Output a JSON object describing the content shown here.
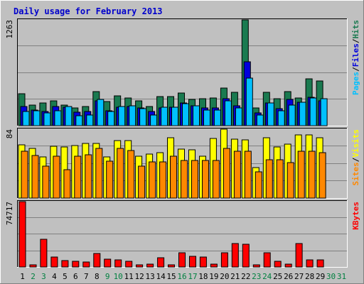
{
  "colors": {
    "background": "#c0c0c0",
    "plot_bg": "#c0c0c0",
    "grid": "#808080",
    "title": "#0000cc",
    "hits": "#1a7a50",
    "files": "#0000dd",
    "pages": "#00c0ff",
    "visits": "#ffff00",
    "sites": "#ff8800",
    "kbytes": "#ff0000",
    "weekday_label": "#000000",
    "weekend_label": "#008040"
  },
  "chart_data": {
    "type": "bar",
    "title": "Daily usage for February 2013",
    "categories": [
      "1",
      "2",
      "3",
      "4",
      "5",
      "6",
      "7",
      "8",
      "9",
      "10",
      "11",
      "12",
      "13",
      "14",
      "15",
      "16",
      "17",
      "18",
      "19",
      "20",
      "21",
      "22",
      "23",
      "24",
      "25",
      "26",
      "27",
      "28",
      "29",
      "30",
      "31"
    ],
    "weekend_days": [
      "2",
      "3",
      "9",
      "10",
      "16",
      "17",
      "23",
      "24",
      "30",
      "31"
    ],
    "panels": [
      {
        "name": "hits-files-pages",
        "max_label": "1263",
        "ymax": 1263,
        "legend": [
          "Pages",
          "/",
          "Files",
          "/",
          "Hits"
        ],
        "series": [
          {
            "name": "Hits",
            "values": [
              380,
              250,
              270,
              300,
              250,
              210,
              230,
              410,
              290,
              360,
              330,
              300,
              230,
              350,
              350,
              390,
              310,
              320,
              330,
              450,
              400,
              1263,
              210,
              400,
              320,
              410,
              330,
              560,
              530,
              0,
              0
            ]
          },
          {
            "name": "Files",
            "values": [
              230,
              190,
              170,
              230,
              220,
              160,
              170,
              300,
              180,
              220,
              230,
              210,
              170,
              210,
              220,
              270,
              240,
              210,
              210,
              320,
              240,
              760,
              150,
              270,
              200,
              310,
              280,
              340,
              300,
              0,
              0
            ]
          },
          {
            "name": "Pages",
            "values": [
              170,
              180,
              150,
              180,
              230,
              120,
              130,
              310,
              170,
              230,
              240,
              200,
              130,
              220,
              220,
              260,
              240,
              190,
              190,
              300,
              210,
              570,
              130,
              270,
              180,
              250,
              280,
              330,
              320,
              0,
              0
            ]
          }
        ]
      },
      {
        "name": "visits-sites",
        "max_label": "84",
        "ymax": 84,
        "legend": [
          "Sites",
          "/",
          "Visits"
        ],
        "series": [
          {
            "name": "Visits",
            "values": [
              65,
              61,
              50,
              63,
              62,
              64,
              67,
              67,
              50,
              70,
              70,
              51,
              54,
              55,
              74,
              60,
              59,
              51,
              73,
              84,
              72,
              71,
              37,
              74,
              62,
              66,
              77,
              77,
              74,
              0,
              0
            ]
          },
          {
            "name": "Sites",
            "values": [
              57,
              52,
              39,
              51,
              35,
              51,
              53,
              61,
              45,
              61,
              58,
              39,
              44,
              44,
              51,
              46,
              46,
              46,
              46,
              61,
              57,
              57,
              32,
              47,
              47,
              43,
              57,
              57,
              55,
              0,
              0
            ]
          }
        ]
      },
      {
        "name": "kbytes",
        "max_label": "74717",
        "ymax": 74717,
        "legend": [
          "KBytes"
        ],
        "series": [
          {
            "name": "KBytes",
            "values": [
              74717,
              2500,
              32000,
              11500,
              7500,
              6500,
              5500,
              15500,
              9000,
              8200,
              6200,
              2500,
              3500,
              10500,
              2500,
              16500,
              12000,
              11200,
              3500,
              16500,
              26500,
              25800,
              2500,
              16500,
              6200,
              3500,
              26500,
              8200,
              8200,
              0,
              0
            ]
          }
        ]
      }
    ]
  }
}
